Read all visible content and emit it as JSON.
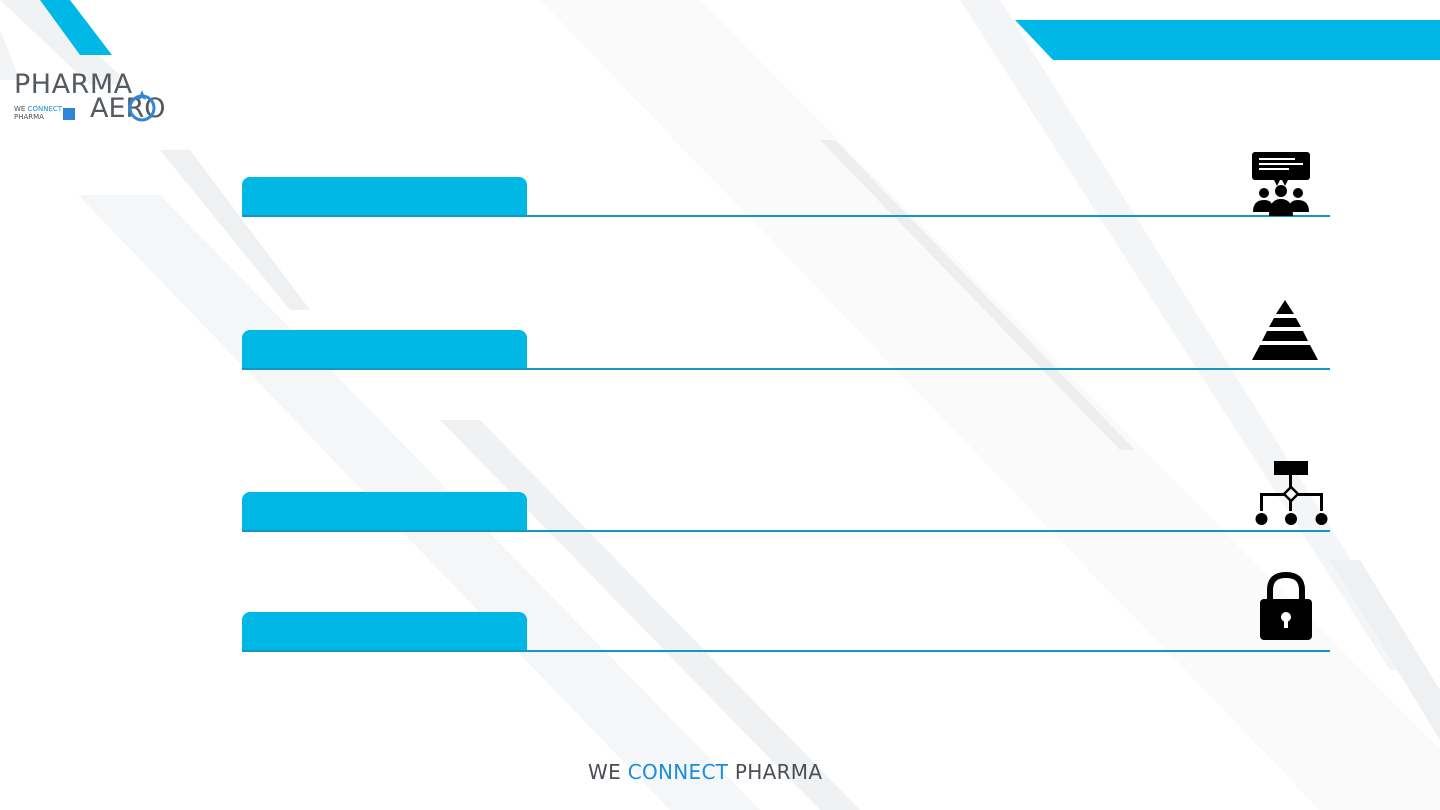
{
  "brand": {
    "logo_line1": "PHARMA",
    "logo_line2": "AERO",
    "logo_tag_we": "WE",
    "logo_tag_connect": "CONNECT",
    "logo_tag_pharma": "PHARMA"
  },
  "footer": {
    "we": "WE",
    "connect": "CONNECT",
    "pharma": "PHARMA"
  },
  "sections": [
    {
      "label": "",
      "icon": "presentation-audience-icon"
    },
    {
      "label": "",
      "icon": "pyramid-icon"
    },
    {
      "label": "",
      "icon": "flowchart-icon"
    },
    {
      "label": "",
      "icon": "padlock-icon"
    }
  ],
  "colors": {
    "accent": "#00b8e6",
    "rule": "#1497c4",
    "logo_blue": "#2f86d6",
    "text_gray": "#4a4f55"
  }
}
